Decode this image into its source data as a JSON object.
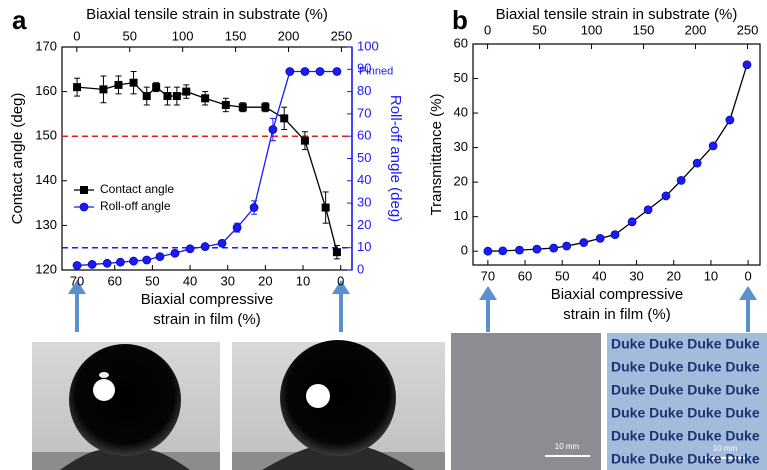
{
  "chart_data": [
    {
      "type": "scatter-line",
      "panel_label": "a",
      "xlabel": [
        "Biaxial compressive",
        "strain in film (%)"
      ],
      "x2label": "Biaxial tensile strain in substrate (%)",
      "ylabel": "Contact angle (deg)",
      "y2label": "Roll-off angle (deg)",
      "xlim": [
        74,
        -3
      ],
      "xticks": [
        70,
        60,
        50,
        40,
        30,
        20,
        10,
        0
      ],
      "x2lim": [
        -14,
        260
      ],
      "x2ticks": [
        0,
        50,
        100,
        150,
        200,
        250
      ],
      "ylim": [
        120,
        170
      ],
      "yticks": [
        120,
        130,
        140,
        150,
        160,
        170
      ],
      "y2lim": [
        0,
        100
      ],
      "y2ticks": [
        0,
        10,
        20,
        30,
        40,
        50,
        60,
        70,
        80,
        90,
        100
      ],
      "legend": "lower-left",
      "series": [
        {
          "name": "Contact angle",
          "color": "#000000",
          "marker": "square",
          "axis": "y",
          "x": [
            70,
            63,
            59,
            55,
            51.5,
            49,
            46,
            43.5,
            41,
            36,
            30.5,
            26,
            20,
            15,
            9.5,
            4,
            1
          ],
          "values": [
            161,
            160.5,
            161.5,
            162,
            159,
            161,
            159,
            159,
            160,
            158.5,
            157,
            156.5,
            156.5,
            154,
            149,
            134,
            124
          ],
          "errors": [
            2,
            3,
            2,
            2.5,
            2,
            1,
            2,
            2,
            1.5,
            1.5,
            1.5,
            1,
            1,
            2.5,
            2,
            3.5,
            1.5
          ]
        },
        {
          "name": "Roll-off angle",
          "color": "#1a1aff",
          "marker": "circle",
          "axis": "y2",
          "x": [
            70,
            66,
            62,
            58.5,
            55,
            51.5,
            48,
            44,
            40,
            36,
            31.5,
            27.5,
            23,
            18,
            13.5,
            9.5,
            5.5,
            1
          ],
          "values": [
            2,
            2.5,
            3,
            3.5,
            4,
            4.5,
            6,
            7.5,
            9.5,
            10.5,
            12,
            19,
            28,
            63,
            89,
            89,
            89,
            89
          ],
          "errors": [
            null,
            null,
            null,
            null,
            null,
            null,
            null,
            null,
            null,
            null,
            1,
            2,
            3,
            5,
            null,
            null,
            null,
            null
          ]
        }
      ],
      "reference_lines": [
        {
          "value": 150,
          "axis": "y",
          "color": "#e02020"
        },
        {
          "value": 10,
          "axis": "y2",
          "color": "#1a1aff"
        }
      ],
      "annotations": [
        {
          "text": "Pinned",
          "y": 89,
          "axis": "y2"
        }
      ]
    },
    {
      "type": "scatter-line",
      "panel_label": "b",
      "xlabel": [
        "Biaxial compressive",
        "strain in film (%)"
      ],
      "x2label": "Biaxial tensile strain in substrate (%)",
      "ylabel": "Transmittance (%)",
      "xlim": [
        74,
        -3.2
      ],
      "xticks": [
        70,
        60,
        50,
        40,
        30,
        20,
        10,
        0
      ],
      "x2lim": [
        -14,
        262
      ],
      "x2ticks": [
        0,
        50,
        100,
        150,
        200,
        250
      ],
      "ylim": [
        -4,
        60
      ],
      "yticks": [
        0,
        10,
        20,
        30,
        40,
        50,
        60
      ],
      "series": [
        {
          "color": "#1a1aff",
          "line_color": "#000000",
          "marker": "circle",
          "axis": "y",
          "x": [
            70,
            66,
            61.5,
            56.8,
            52.3,
            48.8,
            44.2,
            39.8,
            35.8,
            31.2,
            26.9,
            22.1,
            18,
            13.7,
            9.4,
            4.9,
            0.3
          ],
          "values": [
            0,
            0.1,
            0.3,
            0.6,
            0.9,
            1.5,
            2.5,
            3.7,
            4.8,
            8.5,
            12,
            16,
            20.5,
            25.5,
            30.5,
            38,
            54
          ]
        }
      ]
    }
  ],
  "images": {
    "pattern_rows": [
      "Duke Duke Duke Duke",
      "Duke Duke Duke Duke",
      "Duke Duke Duke Duke",
      "Duke Duke Duke Duke",
      "Duke Duke Duke Duke",
      "Duke Duke Duke Duke"
    ],
    "scale_bar_labels": [
      "10 mm",
      "10 mm"
    ]
  }
}
